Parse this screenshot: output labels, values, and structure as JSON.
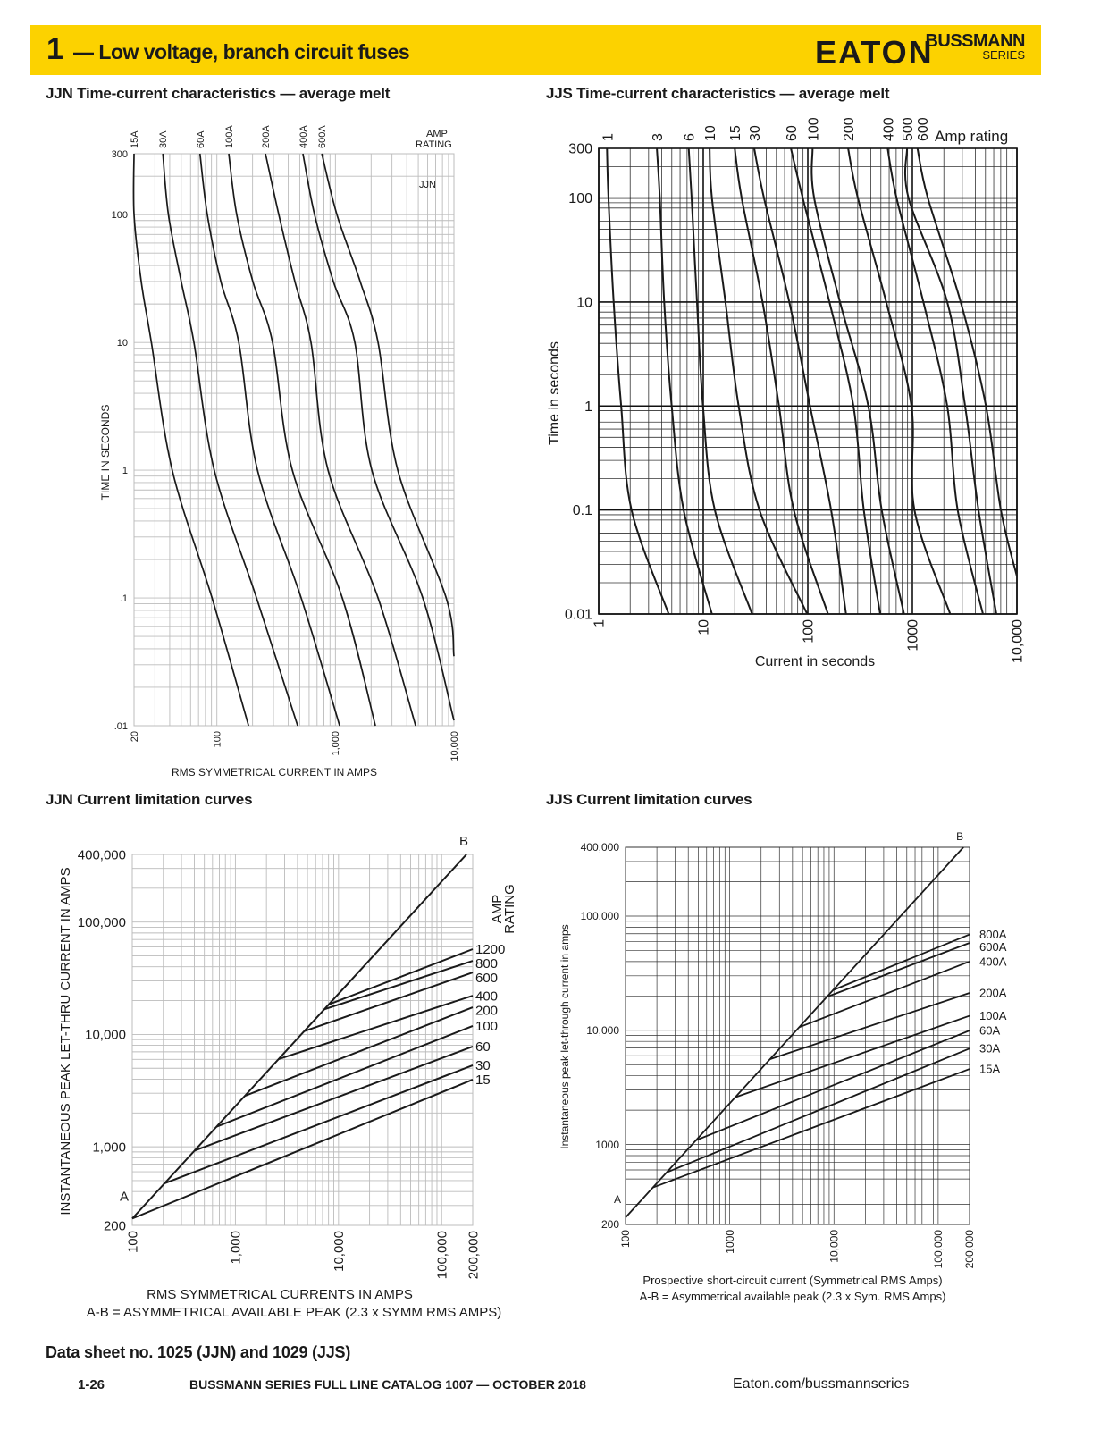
{
  "header": {
    "section_number": "1",
    "title": "— Low voltage, branch circuit fuses",
    "logo": "EATON",
    "brand": "BUSSMANN",
    "brand_sub": "SERIES",
    "band_color": "#fcd200"
  },
  "chart_data": [
    {
      "id": "jjn_tcc",
      "type": "line",
      "title": "JJN Time-current characteristics — average melt",
      "xlabel": "RMS SYMMETRICAL CURRENT IN AMPS",
      "ylabel": "TIME IN SECONDS",
      "xscale": "log",
      "yscale": "log",
      "xlim": [
        20,
        10000
      ],
      "ylim": [
        0.01,
        300
      ],
      "grid": true,
      "xticks": [
        {
          "v": 20,
          "label": "20"
        },
        {
          "v": 100,
          "label": "100"
        },
        {
          "v": 1000,
          "label": "1,000"
        },
        {
          "v": 10000,
          "label": "10,000"
        }
      ],
      "yticks": [
        {
          "v": 300,
          "label": "300"
        },
        {
          "v": 100,
          "label": "100"
        },
        {
          "v": 10,
          "label": "10"
        },
        {
          "v": 1,
          "label": "1"
        },
        {
          "v": 0.1,
          "label": ".1"
        },
        {
          "v": 0.01,
          "label": ".01"
        }
      ],
      "legend_title": [
        "AMP",
        "RATING"
      ],
      "annotation": "JJN",
      "series": [
        {
          "name": "15A",
          "points": [
            [
              20,
              300
            ],
            [
              20,
              100
            ],
            [
              23,
              30
            ],
            [
              28,
              10
            ],
            [
              42,
              1
            ],
            [
              91,
              0.1
            ],
            [
              185,
              0.01
            ]
          ]
        },
        {
          "name": "30A",
          "points": [
            [
              35,
              300
            ],
            [
              39,
              100
            ],
            [
              50,
              30
            ],
            [
              64,
              10
            ],
            [
              95,
              1
            ],
            [
              216,
              0.1
            ],
            [
              480,
              0.01
            ]
          ]
        },
        {
          "name": "60A",
          "points": [
            [
              72,
              300
            ],
            [
              83,
              100
            ],
            [
              108,
              30
            ],
            [
              153,
              10
            ],
            [
              220,
              1
            ],
            [
              514,
              0.1
            ],
            [
              1086,
              0.01
            ]
          ]
        },
        {
          "name": "100A",
          "points": [
            [
              126,
              300
            ],
            [
              147,
              100
            ],
            [
              201,
              30
            ],
            [
              295,
              10
            ],
            [
              433,
              1
            ],
            [
              1143,
              0.1
            ],
            [
              2174,
              0.01
            ]
          ]
        },
        {
          "name": "200A",
          "points": [
            [
              257,
              300
            ],
            [
              333,
              100
            ],
            [
              455,
              30
            ],
            [
              622,
              10
            ],
            [
              867,
              1
            ],
            [
              2290,
              0.1
            ],
            [
              4750,
              0.01
            ]
          ]
        },
        {
          "name": "400A",
          "points": [
            [
              532,
              300
            ],
            [
              667,
              100
            ],
            [
              961,
              30
            ],
            [
              1458,
              10
            ],
            [
              2028,
              1
            ],
            [
              5460,
              0.1
            ],
            [
              10000,
              0.011
            ]
          ]
        },
        {
          "name": "600A",
          "points": [
            [
              768,
              300
            ],
            [
              1030,
              100
            ],
            [
              1618,
              30
            ],
            [
              2290,
              10
            ],
            [
              3357,
              1
            ],
            [
              8600,
              0.1
            ],
            [
              10000,
              0.035
            ]
          ]
        }
      ]
    },
    {
      "id": "jjs_tcc",
      "type": "line",
      "title": "JJS Time-current characteristics — average melt",
      "xlabel": "Current in seconds",
      "ylabel": "Time in seconds",
      "xscale": "log",
      "yscale": "log",
      "xlim": [
        1,
        10000
      ],
      "ylim": [
        0.01,
        300
      ],
      "grid": true,
      "xticks": [
        {
          "v": 1,
          "label": "1"
        },
        {
          "v": 10,
          "label": "10"
        },
        {
          "v": 100,
          "label": "100"
        },
        {
          "v": 1000,
          "label": "1000"
        },
        {
          "v": 10000,
          "label": "10,000"
        }
      ],
      "yticks": [
        {
          "v": 300,
          "label": "300"
        },
        {
          "v": 100,
          "label": "100"
        },
        {
          "v": 10,
          "label": "10"
        },
        {
          "v": 1,
          "label": "1"
        },
        {
          "v": 0.1,
          "label": "0.1"
        },
        {
          "v": 0.01,
          "label": "0.01"
        }
      ],
      "legend_title": [
        "Amp rating"
      ],
      "series": [
        {
          "name": "1",
          "points": [
            [
              1.2,
              300
            ],
            [
              1.24,
              100
            ],
            [
              1.39,
              10
            ],
            [
              1.64,
              1
            ],
            [
              2.06,
              0.1
            ],
            [
              4.67,
              0.01
            ]
          ]
        },
        {
          "name": "3",
          "points": [
            [
              3.6,
              300
            ],
            [
              3.84,
              100
            ],
            [
              4.23,
              10
            ],
            [
              4.99,
              1
            ],
            [
              6.49,
              0.1
            ],
            [
              12.1,
              0.01
            ]
          ]
        },
        {
          "name": "6",
          "points": [
            [
              7.26,
              300
            ],
            [
              7.74,
              100
            ],
            [
              8.71,
              10
            ],
            [
              9.94,
              1
            ],
            [
              12.9,
              0.1
            ],
            [
              29.3,
              0.01
            ]
          ]
        },
        {
          "name": "10",
          "points": [
            [
              11.5,
              300
            ],
            [
              12.1,
              100
            ],
            [
              16.3,
              10
            ],
            [
              21.8,
              1
            ],
            [
              34.5,
              0.1
            ],
            [
              98.6,
              0.01
            ]
          ]
        },
        {
          "name": "15",
          "points": [
            [
              20,
              300
            ],
            [
              23.3,
              100
            ],
            [
              36.9,
              10
            ],
            [
              53,
              1
            ],
            [
              73.5,
              0.1
            ],
            [
              156,
              0.01
            ]
          ]
        },
        {
          "name": "30",
          "points": [
            [
              30.7,
              300
            ],
            [
              38.1,
              100
            ],
            [
              66.5,
              10
            ],
            [
              105,
              1
            ],
            [
              167,
              0.1
            ],
            [
              232,
              0.01
            ]
          ]
        },
        {
          "name": "60",
          "points": [
            [
              68.9,
              300
            ],
            [
              89.4,
              100
            ],
            [
              161,
              10
            ],
            [
              273,
              1
            ],
            [
              343,
              0.1
            ],
            [
              492,
              0.01
            ]
          ]
        },
        {
          "name": "100",
          "points": [
            [
              111,
              300
            ],
            [
              115,
              100
            ],
            [
              203,
              10
            ],
            [
              379,
              1
            ],
            [
              509,
              0.1
            ],
            [
              832,
              0.01
            ]
          ]
        },
        {
          "name": "200",
          "points": [
            [
              243,
              300
            ],
            [
              301,
              100
            ],
            [
              562,
              10
            ],
            [
              980,
              1
            ],
            [
              1047,
              0.1
            ],
            [
              2300,
              0.01
            ]
          ]
        },
        {
          "name": "400",
          "points": [
            [
              580,
              300
            ],
            [
              706,
              100
            ],
            [
              1274,
              10
            ],
            [
              2154,
              1
            ],
            [
              2712,
              0.1
            ],
            [
              4732,
              0.01
            ]
          ]
        },
        {
          "name": "500",
          "points": [
            [
              889,
              300
            ],
            [
              919,
              100
            ],
            [
              2154,
              10
            ],
            [
              3194,
              1
            ],
            [
              4290,
              0.1
            ],
            [
              6360,
              0.01
            ]
          ]
        },
        {
          "name": "600",
          "points": [
            [
              1119,
              300
            ],
            [
              1406,
              100
            ],
            [
              2897,
              10
            ],
            [
              5057,
              1
            ],
            [
              7020,
              0.1
            ],
            [
              10000,
              0.023
            ]
          ]
        }
      ]
    },
    {
      "id": "jjn_current_limitation",
      "type": "line",
      "title": "JJN Current limitation curves",
      "xlabel": "RMS SYMMETRICAL CURRENTS IN AMPS",
      "note": "A-B = ASYMMETRICAL AVAILABLE PEAK (2.3 x SYMM RMS AMPS)",
      "ylabel": "INSTANTANEOUS PEAK LET-THRU CURRENT IN AMPS",
      "xscale": "log",
      "yscale": "log",
      "xlim": [
        100,
        200000
      ],
      "ylim": [
        200,
        400000
      ],
      "grid": true,
      "xticks": [
        {
          "v": 100,
          "label": "100"
        },
        {
          "v": 1000,
          "label": "1,000"
        },
        {
          "v": 10000,
          "label": "10,000"
        },
        {
          "v": 100000,
          "label": "100,000"
        },
        {
          "v": 200000,
          "label": "200,000"
        }
      ],
      "yticks": [
        {
          "v": 400000,
          "label": "400,000"
        },
        {
          "v": 100000,
          "label": "100,000"
        },
        {
          "v": 10000,
          "label": "10,000"
        },
        {
          "v": 1000,
          "label": "1,000"
        },
        {
          "v": 200,
          "label": "200"
        }
      ],
      "legend_title": [
        "AMP",
        "RATING"
      ],
      "reference_line": {
        "name": "A-B",
        "start_label": "A",
        "end_label": "B",
        "points": [
          [
            100,
            230
          ],
          [
            174000,
            400000
          ]
        ]
      },
      "series": [
        {
          "name": "1200",
          "points": [
            [
              8050,
              18515
            ],
            [
              200000,
              57400
            ]
          ]
        },
        {
          "name": "800",
          "points": [
            [
              7270,
              16720
            ],
            [
              200000,
              45200
            ]
          ]
        },
        {
          "name": "600",
          "points": [
            [
              4640,
              10670
            ],
            [
              200000,
              35600
            ]
          ]
        },
        {
          "name": "400",
          "points": [
            [
              2620,
              6030
            ],
            [
              200000,
              22140
            ]
          ]
        },
        {
          "name": "200",
          "points": [
            [
              1233,
              2836
            ],
            [
              200000,
              17450
            ]
          ]
        },
        {
          "name": "100",
          "points": [
            [
              655,
              1507
            ],
            [
              200000,
              11890
            ]
          ]
        },
        {
          "name": "60",
          "points": [
            [
              402,
              925
            ],
            [
              200000,
              7800
            ]
          ]
        },
        {
          "name": "30",
          "points": [
            [
              205,
              472
            ],
            [
              200000,
              5310
            ]
          ]
        },
        {
          "name": "15",
          "points": [
            [
              100,
              230
            ],
            [
              200000,
              3960
            ]
          ]
        }
      ]
    },
    {
      "id": "jjs_current_limitation",
      "type": "line",
      "title": "JJS Current limitation curves",
      "xlabel": "Prospective short-circuit current (Symmetrical RMS Amps)",
      "note": "A-B = Asymmetrical available peak (2.3 x Sym. RMS Amps)",
      "ylabel": "Instantaneous peak let-through current in amps",
      "xscale": "log",
      "yscale": "log",
      "xlim": [
        100,
        200000
      ],
      "ylim": [
        200,
        400000
      ],
      "grid": true,
      "xticks": [
        {
          "v": 100,
          "label": "100"
        },
        {
          "v": 1000,
          "label": "1000"
        },
        {
          "v": 10000,
          "label": "10,000"
        },
        {
          "v": 100000,
          "label": "100,000"
        },
        {
          "v": 200000,
          "label": "200,000"
        }
      ],
      "yticks": [
        {
          "v": 400000,
          "label": "400,000"
        },
        {
          "v": 100000,
          "label": "100,000"
        },
        {
          "v": 10000,
          "label": "10,000"
        },
        {
          "v": 1000,
          "label": "1000"
        },
        {
          "v": 200,
          "label": "200"
        }
      ],
      "reference_line": {
        "name": "A-B",
        "start_label": "A",
        "end_label": "B",
        "points": [
          [
            100,
            230
          ],
          [
            174600,
            400000
          ]
        ]
      },
      "series": [
        {
          "name": "800A",
          "points": [
            [
              9770,
              22470
            ],
            [
              200000,
              69000
            ]
          ]
        },
        {
          "name": "600A",
          "points": [
            [
              8510,
              19570
            ],
            [
              200000,
              58200
            ]
          ]
        },
        {
          "name": "400A",
          "points": [
            [
              4620,
              10630
            ],
            [
              200000,
              40000
            ]
          ]
        },
        {
          "name": "200A",
          "points": [
            [
              2430,
              5590
            ],
            [
              200000,
              21220
            ]
          ]
        },
        {
          "name": "100A",
          "points": [
            [
              1128,
              2594
            ],
            [
              200000,
              13400
            ]
          ]
        },
        {
          "name": "60A",
          "points": [
            [
              474,
              1090
            ],
            [
              200000,
              9950
            ]
          ]
        },
        {
          "name": "30A",
          "points": [
            [
              248,
              570
            ],
            [
              200000,
              6930
            ]
          ]
        },
        {
          "name": "15A",
          "points": [
            [
              183,
              421
            ],
            [
              200000,
              4590
            ]
          ]
        }
      ]
    }
  ],
  "data_sheet": "Data sheet no. 1025 (JJN) and 1029 (JJS)",
  "footer": {
    "page": "1-26",
    "catalog": "BUSSMANN SERIES FULL LINE CATALOG 1007 — OCTOBER 2018",
    "url": "Eaton.com/bussmannseries"
  }
}
